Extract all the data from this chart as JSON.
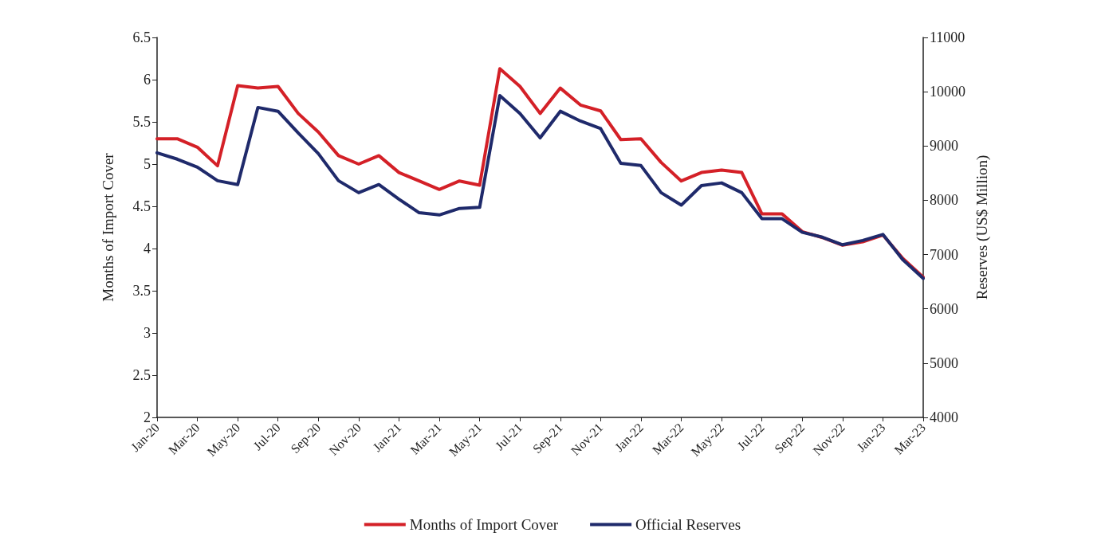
{
  "chart_data": {
    "type": "line",
    "ylabel": "Months of Import Cover",
    "y2label": "Reserves (US$ Million)",
    "categories": [
      "Jan-20",
      null,
      "Mar-20",
      null,
      "May-20",
      null,
      "Jul-20",
      null,
      "Sep-20",
      null,
      "Nov-20",
      null,
      "Jan-21",
      null,
      "Mar-21",
      null,
      "May-21",
      null,
      "Jul-21",
      null,
      "Sep-21",
      null,
      "Nov-21",
      null,
      "Jan-22",
      null,
      "Mar-22",
      null,
      "May-22",
      null,
      "Jul-22",
      null,
      "Sep-22",
      null,
      "Nov-22",
      null,
      "Jan-23",
      null,
      "Mar-23"
    ],
    "series": [
      {
        "name": "Months of Import Cover",
        "color": "#d42027",
        "values": [
          5.3,
          5.3,
          5.2,
          4.98,
          5.93,
          5.9,
          5.92,
          5.6,
          5.38,
          5.1,
          5.0,
          5.1,
          4.9,
          4.8,
          4.7,
          4.8,
          4.75,
          6.13,
          5.92,
          5.6,
          5.9,
          5.7,
          5.63,
          5.29,
          5.3,
          5.02,
          4.8,
          4.9,
          4.93,
          4.9,
          4.41,
          4.41,
          4.2,
          4.13,
          4.04,
          4.08,
          4.16,
          3.88,
          3.66
        ]
      },
      {
        "name": "Official Reserves",
        "color": "#1f2a6b",
        "axis": "y2",
        "values": [
          8875,
          8758,
          8610,
          8360,
          8290,
          9710,
          9640,
          9240,
          8860,
          8360,
          8140,
          8290,
          8020,
          7770,
          7730,
          7850,
          7870,
          9930,
          9600,
          9150,
          9640,
          9460,
          9320,
          8680,
          8640,
          8140,
          7910,
          8270,
          8320,
          8140,
          7660,
          7660,
          7410,
          7320,
          7180,
          7260,
          7370,
          6900,
          6560
        ]
      }
    ],
    "ylim": [
      2,
      6.5
    ],
    "yticks": [
      2,
      2.5,
      3,
      3.5,
      4,
      4.5,
      5,
      5.5,
      6,
      6.5
    ],
    "y2lim": [
      4000,
      11000
    ],
    "y2ticks": [
      4000,
      5000,
      6000,
      7000,
      8000,
      9000,
      10000,
      11000
    ],
    "grid": false,
    "legend": "bottom",
    "marker": "none",
    "line_style": "solid"
  }
}
